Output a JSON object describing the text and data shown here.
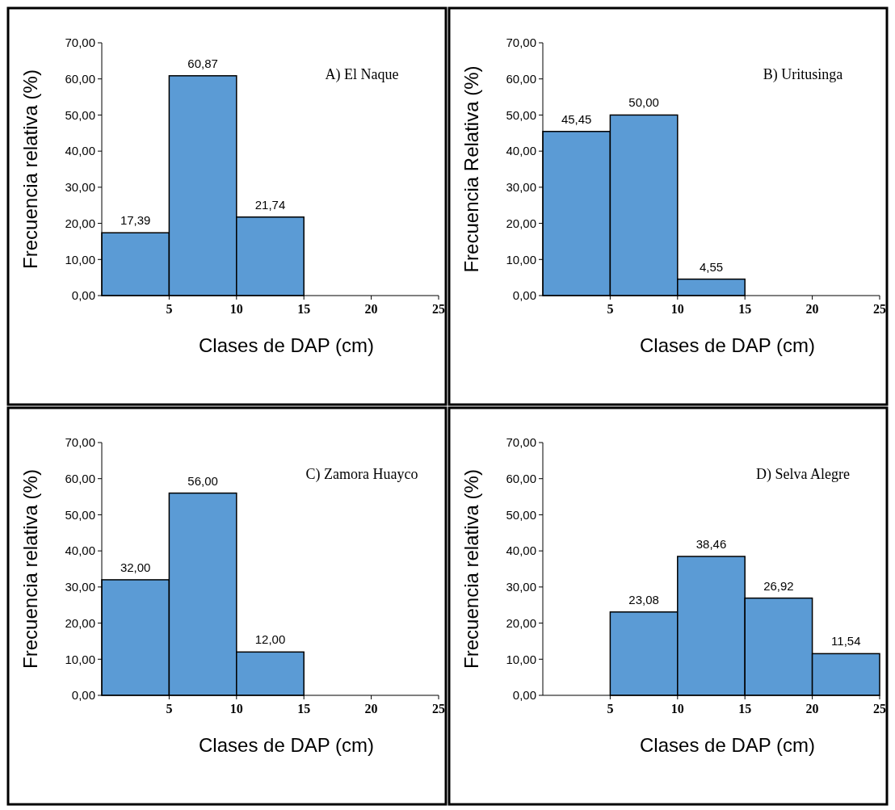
{
  "chart_data": [
    {
      "type": "histogram",
      "bins": [
        0,
        5,
        10,
        15
      ],
      "values": [
        17.39,
        60.87,
        21.74
      ],
      "value_labels": [
        "17,39",
        "60,87",
        "21,74"
      ],
      "color": "#5b9bd5",
      "xlabel": "Clases de DAP (cm)",
      "ylabel": "Frecuencia relativa (%)",
      "annotations": [
        "A) El Naque"
      ],
      "xlim": [
        0,
        25
      ],
      "xticks": [
        5,
        10,
        15,
        20,
        25
      ],
      "ylim": [
        0,
        70
      ],
      "yticks": [
        {
          "value": 0,
          "label": "0,00"
        },
        {
          "value": 10,
          "label": "10,00"
        },
        {
          "value": 20,
          "label": "20,00"
        },
        {
          "value": 30,
          "label": "30,00"
        },
        {
          "value": 40,
          "label": "40,00"
        },
        {
          "value": 50,
          "label": "50,00"
        },
        {
          "value": 60,
          "label": "60,00"
        },
        {
          "value": 70,
          "label": "70,00"
        }
      ],
      "grid": false
    },
    {
      "type": "histogram",
      "bins": [
        0,
        5,
        10,
        15
      ],
      "values": [
        45.45,
        50.0,
        4.55
      ],
      "value_labels": [
        "45,45",
        "50,00",
        "4,55"
      ],
      "color": "#5b9bd5",
      "xlabel": "Clases de DAP (cm)",
      "ylabel": "Frecuencia Relativa (%)",
      "annotations": [
        "B) Uritusinga"
      ],
      "xlim": [
        0,
        25
      ],
      "xticks": [
        5,
        10,
        15,
        20,
        25
      ],
      "ylim": [
        0,
        70
      ],
      "yticks": [
        {
          "value": 0,
          "label": "0,00"
        },
        {
          "value": 10,
          "label": "10,00"
        },
        {
          "value": 20,
          "label": "20,00"
        },
        {
          "value": 30,
          "label": "30,00"
        },
        {
          "value": 40,
          "label": "40,00"
        },
        {
          "value": 50,
          "label": "50,00"
        },
        {
          "value": 60,
          "label": "60,00"
        },
        {
          "value": 70,
          "label": "70,00"
        }
      ],
      "grid": false
    },
    {
      "type": "histogram",
      "bins": [
        0,
        5,
        10,
        15
      ],
      "values": [
        32.0,
        56.0,
        12.0
      ],
      "value_labels": [
        "32,00",
        "56,00",
        "12,00"
      ],
      "color": "#5b9bd5",
      "xlabel": "Clases de DAP (cm)",
      "ylabel": "Frecuencia relativa (%)",
      "annotations": [
        "C) Zamora Huayco"
      ],
      "xlim": [
        0,
        25
      ],
      "xticks": [
        5,
        10,
        15,
        20,
        25
      ],
      "ylim": [
        0,
        70
      ],
      "yticks": [
        {
          "value": 0,
          "label": "0,00"
        },
        {
          "value": 10,
          "label": "10,00"
        },
        {
          "value": 20,
          "label": "20,00"
        },
        {
          "value": 30,
          "label": "30,00"
        },
        {
          "value": 40,
          "label": "40,00"
        },
        {
          "value": 50,
          "label": "50,00"
        },
        {
          "value": 60,
          "label": "60,00"
        },
        {
          "value": 70,
          "label": "70,00"
        }
      ],
      "grid": false
    },
    {
      "type": "histogram",
      "bins": [
        5,
        10,
        15,
        20,
        25
      ],
      "values": [
        23.08,
        38.46,
        26.92,
        11.54
      ],
      "value_labels": [
        "23,08",
        "38,46",
        "26,92",
        "11,54"
      ],
      "color": "#5b9bd5",
      "xlabel": "Clases de DAP (cm)",
      "ylabel": "Frecuencia relativa (%)",
      "annotations": [
        "D) Selva Alegre"
      ],
      "xlim": [
        0,
        25
      ],
      "xticks": [
        5,
        10,
        15,
        20,
        25
      ],
      "ylim": [
        0,
        70
      ],
      "yticks": [
        {
          "value": 0,
          "label": "0,00"
        },
        {
          "value": 10,
          "label": "10,00"
        },
        {
          "value": 20,
          "label": "20,00"
        },
        {
          "value": 30,
          "label": "30,00"
        },
        {
          "value": 40,
          "label": "40,00"
        },
        {
          "value": 50,
          "label": "50,00"
        },
        {
          "value": 60,
          "label": "60,00"
        },
        {
          "value": 70,
          "label": "70,00"
        }
      ],
      "grid": false
    }
  ]
}
